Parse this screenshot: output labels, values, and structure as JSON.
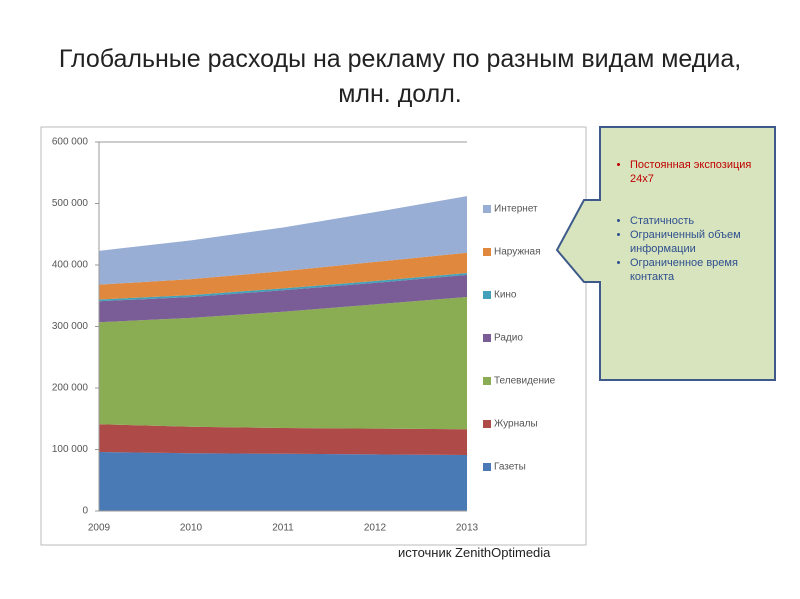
{
  "chart_data": {
    "type": "stacked-area",
    "title": "Глобальные расходы на рекламу по разным видам медиа, млн. долл.",
    "categories": [
      "2009",
      "2010",
      "2011",
      "2012",
      "2013"
    ],
    "ylim": [
      0,
      600000
    ],
    "yticks": [
      0,
      {
        "value": 100000,
        "label": "100 000"
      },
      {
        "value": 200000,
        "label": "200 000"
      },
      {
        "value": 300000,
        "label": "300 000"
      },
      {
        "value": 400000,
        "label": "400 000"
      },
      {
        "value": 500000,
        "label": "500 000"
      },
      {
        "value": 600000,
        "label": "600 000"
      }
    ],
    "grid": false,
    "legend": "right",
    "series": [
      {
        "name": "Газеты",
        "color": "#4a7ab5",
        "values": [
          96000,
          94000,
          93000,
          92000,
          91000
        ]
      },
      {
        "name": "Журналы",
        "color": "#ae4a48",
        "values": [
          45000,
          43000,
          42000,
          42000,
          42000
        ]
      },
      {
        "name": "Телевидение",
        "color": "#8aac52",
        "values": [
          166000,
          177000,
          189000,
          202000,
          215000
        ]
      },
      {
        "name": "Радио",
        "color": "#7a5c96",
        "values": [
          34000,
          34000,
          35000,
          35000,
          36000
        ]
      },
      {
        "name": "Кино",
        "color": "#43a0b8",
        "values": [
          3000,
          3000,
          3000,
          3000,
          3000
        ]
      },
      {
        "name": "Наружная",
        "color": "#e0893e",
        "values": [
          24000,
          26000,
          28000,
          31000,
          33000
        ]
      },
      {
        "name": "Интернет",
        "color": "#98aed5",
        "values": [
          55000,
          63000,
          71000,
          81000,
          92000
        ]
      }
    ]
  },
  "callout": {
    "highlight": "Постоянная экспозиция 24х7",
    "items": [
      " Статичность",
      "Ограниченный объем информации",
      "Ограниченное время контакта"
    ]
  },
  "source": "источник ZenithOptimedia"
}
